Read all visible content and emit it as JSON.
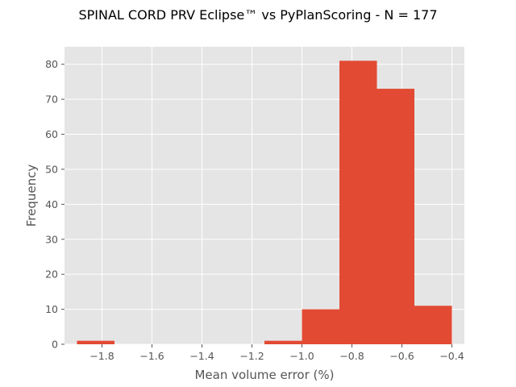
{
  "chart_data": {
    "type": "bar",
    "subtype": "histogram",
    "title": "SPINAL CORD PRV Eclipse™ vs PyPlanScoring - N = 177",
    "xlabel": "Mean volume error (%)",
    "ylabel": "Frequency",
    "xlim": [
      -1.95,
      -0.35
    ],
    "ylim": [
      0,
      85
    ],
    "grid": true,
    "bar_color": "#E24A33",
    "background_color": "#E5E5E5",
    "x_ticks": [
      {
        "value": -1.8,
        "label": "−1.8"
      },
      {
        "value": -1.6,
        "label": "−1.6"
      },
      {
        "value": -1.4,
        "label": "−1.4"
      },
      {
        "value": -1.2,
        "label": "−1.2"
      },
      {
        "value": -1.0,
        "label": "−1.0"
      },
      {
        "value": -0.8,
        "label": "−0.8"
      },
      {
        "value": -0.6,
        "label": "−0.6"
      },
      {
        "value": -0.4,
        "label": "−0.4"
      }
    ],
    "y_ticks": [
      {
        "value": 0,
        "label": "0"
      },
      {
        "value": 10,
        "label": "10"
      },
      {
        "value": 20,
        "label": "20"
      },
      {
        "value": 30,
        "label": "30"
      },
      {
        "value": 40,
        "label": "40"
      },
      {
        "value": 50,
        "label": "50"
      },
      {
        "value": 60,
        "label": "60"
      },
      {
        "value": 70,
        "label": "70"
      },
      {
        "value": 80,
        "label": "80"
      }
    ],
    "bins": [
      {
        "x0": -1.9,
        "x1": -1.75,
        "value": 1
      },
      {
        "x0": -1.75,
        "x1": -1.6,
        "value": 0
      },
      {
        "x0": -1.6,
        "x1": -1.45,
        "value": 0
      },
      {
        "x0": -1.45,
        "x1": -1.3,
        "value": 0
      },
      {
        "x0": -1.3,
        "x1": -1.15,
        "value": 0
      },
      {
        "x0": -1.15,
        "x1": -1.0,
        "value": 1
      },
      {
        "x0": -1.0,
        "x1": -0.85,
        "value": 10
      },
      {
        "x0": -0.85,
        "x1": -0.7,
        "value": 81
      },
      {
        "x0": -0.7,
        "x1": -0.55,
        "value": 73
      },
      {
        "x0": -0.55,
        "x1": -0.4,
        "value": 11
      }
    ]
  }
}
